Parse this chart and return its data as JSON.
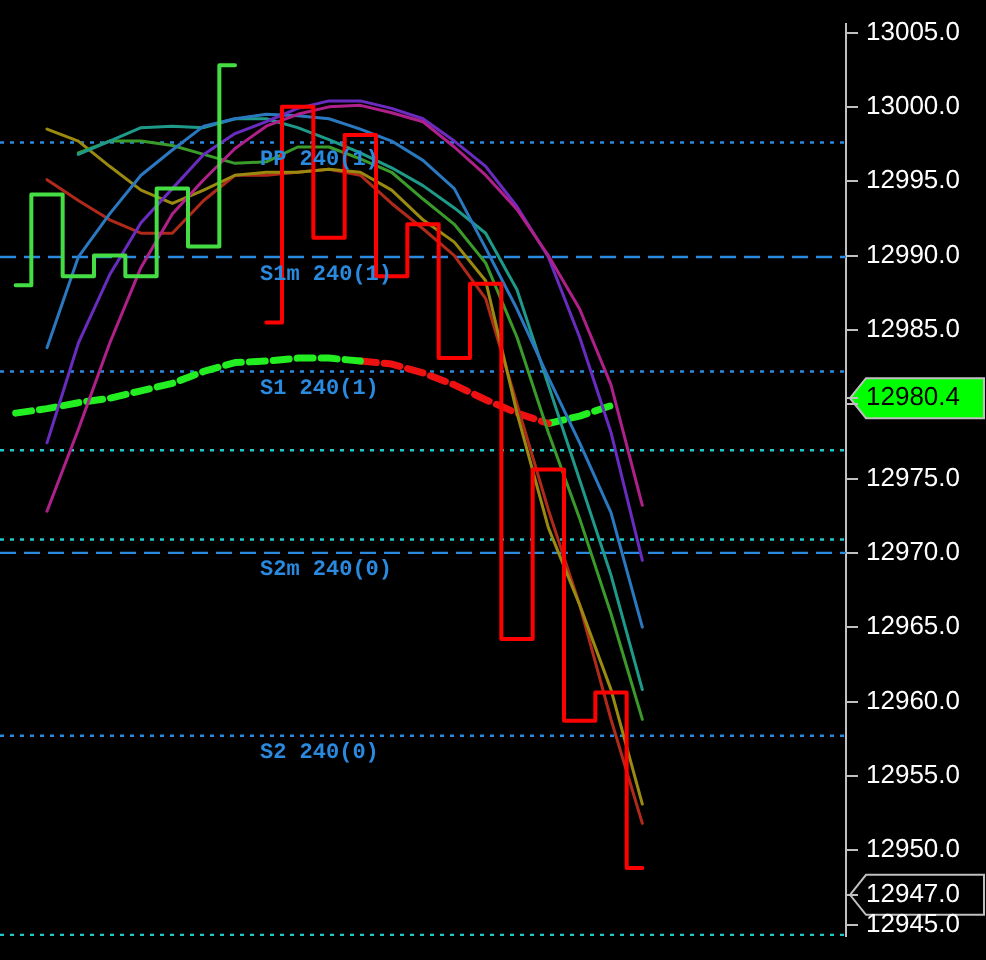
{
  "chart_data": {
    "type": "line",
    "categories": [
      null,
      null,
      null,
      null,
      null,
      null,
      null,
      null,
      null,
      null,
      null,
      null,
      null,
      null,
      null,
      null,
      null,
      null,
      null,
      null,
      null,
      null,
      null,
      null,
      null,
      null,
      null
    ],
    "series": [
      {
        "type": "step",
        "color": "#44dd44",
        "values": [
          12988.0,
          12994.1,
          12988.6,
          12990.0,
          12988.6,
          12994.5,
          12990.6,
          13002.8,
          null,
          null,
          null,
          null,
          null,
          null,
          null,
          null,
          null,
          null,
          null,
          null,
          null,
          null,
          null,
          null,
          null,
          null,
          null
        ]
      },
      {
        "type": "step",
        "color": "#ff0000",
        "values": [
          null,
          null,
          null,
          null,
          null,
          null,
          null,
          null,
          12985.5,
          13000.0,
          12991.2,
          12998.1,
          12988.6,
          12992.1,
          12983.1,
          12988.1,
          12964.2,
          12975.6,
          12958.7,
          12960.6,
          12948.8,
          null,
          null,
          null,
          null,
          null,
          null
        ]
      },
      {
        "color": "#b0208a",
        "values": [
          null,
          12972.8,
          12978.3,
          12984.1,
          12989.2,
          12992.8,
          12995.1,
          12997.2,
          12998.7,
          12999.5,
          13000.0,
          13000.1,
          12999.6,
          12999.0,
          12997.3,
          12995.4,
          12993.1,
          12990.0,
          12986.4,
          12981.3,
          12973.2,
          null,
          null,
          null,
          null,
          null,
          null
        ]
      },
      {
        "color": "#6a2cc0",
        "values": [
          null,
          12977.4,
          12984.1,
          12988.7,
          12992.2,
          12994.5,
          12996.8,
          12998.2,
          12999.0,
          12999.9,
          13000.4,
          13000.4,
          12999.9,
          12999.2,
          12997.7,
          12996.0,
          12993.3,
          12989.9,
          12984.5,
          12978.1,
          12969.5,
          null,
          null,
          null,
          null,
          null,
          null
        ]
      },
      {
        "color": "#2a78c0",
        "values": [
          null,
          12983.8,
          12989.9,
          12992.8,
          12995.4,
          12997.1,
          12998.7,
          12999.2,
          12999.5,
          12999.4,
          12999.2,
          12998.5,
          12997.7,
          12996.4,
          12994.5,
          12990.5,
          12986.4,
          12981.8,
          12977.4,
          12972.7,
          12965.0,
          null,
          null,
          null,
          null,
          null,
          null
        ]
      },
      {
        "color": "#1e9a8a",
        "values": [
          null,
          null,
          12996.8,
          12997.7,
          12998.6,
          12998.7,
          12998.6,
          12999.2,
          12999.2,
          12998.6,
          12997.8,
          12996.9,
          12995.9,
          12994.7,
          12993.2,
          12991.5,
          12987.7,
          12981.3,
          12974.9,
          12968.5,
          12960.8,
          null,
          null,
          null,
          null,
          null,
          null
        ]
      },
      {
        "color": "#3a9a2a",
        "values": [
          null,
          null,
          12996.9,
          12997.7,
          12997.7,
          12997.4,
          12996.8,
          12996.2,
          12996.3,
          12997.3,
          12997.3,
          12996.5,
          12995.6,
          12993.8,
          12992.1,
          12989.5,
          12984.5,
          12978.1,
          12972.3,
          12965.9,
          12958.8,
          null,
          null,
          null,
          null,
          null,
          null
        ]
      },
      {
        "color": "#9a8a10",
        "values": [
          null,
          12998.5,
          12997.7,
          12996.0,
          12994.4,
          12993.5,
          12994.4,
          12995.4,
          12995.6,
          12995.6,
          12995.8,
          12995.6,
          12994.4,
          12992.4,
          12990.9,
          12988.3,
          12979.4,
          12971.7,
          12966.5,
          12960.8,
          12953.1,
          null,
          null,
          null,
          null,
          null,
          null
        ]
      },
      {
        "color": "#b02a1a",
        "values": [
          null,
          12995.1,
          12993.7,
          12992.4,
          12991.5,
          12991.5,
          12993.7,
          12995.4,
          12995.4,
          12995.6,
          12995.8,
          12995.4,
          12993.5,
          12991.8,
          12990.0,
          12987.1,
          12980.0,
          12972.9,
          12966.5,
          12958.8,
          12951.8,
          null,
          null,
          null,
          null,
          null,
          null
        ]
      },
      {
        "color": "#22ee22",
        "line_style": "dashed",
        "values": [
          12979.4,
          12979.7,
          12980.1,
          12980.4,
          12980.9,
          12981.4,
          12982.2,
          12982.8,
          12982.9,
          12983.1,
          12983.1,
          12982.9,
          null,
          null,
          null,
          null,
          null,
          null,
          null,
          null,
          null,
          null,
          null,
          null,
          null,
          null,
          null
        ]
      },
      {
        "color": "#ee1111",
        "line_style": "dashed",
        "values": [
          null,
          null,
          null,
          null,
          null,
          null,
          null,
          null,
          null,
          null,
          null,
          12982.9,
          12982.7,
          12982.1,
          12981.3,
          12980.3,
          12979.4,
          12978.7,
          null,
          null,
          null,
          null,
          null,
          null,
          null,
          null,
          null
        ]
      },
      {
        "color": "#22ee22",
        "line_style": "dashed",
        "values": [
          null,
          null,
          null,
          null,
          null,
          null,
          null,
          null,
          null,
          null,
          null,
          null,
          null,
          null,
          null,
          null,
          null,
          12978.7,
          12979.2,
          12979.9,
          null,
          null,
          null,
          null,
          null,
          null,
          null
        ]
      }
    ],
    "ylim": [
      12944.2,
      13005.6
    ],
    "yticks": [
      {
        "value": 12945,
        "label": "12945.0"
      },
      {
        "value": 12947.0,
        "label": "12947.0"
      },
      {
        "value": 12980.4,
        "label": "12980.4"
      },
      {
        "value": 12950,
        "label": "12950.0"
      },
      {
        "value": 12955,
        "label": "12955.0"
      },
      {
        "value": 12960,
        "label": "12960.0"
      },
      {
        "value": 12965,
        "label": "12965.0"
      },
      {
        "value": 12970,
        "label": "12970.0"
      },
      {
        "value": 12975,
        "label": "12975.0"
      },
      {
        "value": 12980,
        "label": null
      },
      {
        "value": 12985,
        "label": "12985.0"
      },
      {
        "value": 12990,
        "label": "12990.0"
      },
      {
        "value": 12995,
        "label": "12995.0"
      },
      {
        "value": 13000,
        "label": "13000.0"
      },
      {
        "value": 13005,
        "label": "13005.0"
      }
    ],
    "ref_lines": [
      {
        "axis": "y",
        "value": 12997.6,
        "label": "PP 240(1)",
        "color": "#2a8ae0",
        "line_style": "dotted"
      },
      {
        "axis": "y",
        "value": 12989.9,
        "label": "S1m 240(1)",
        "color": "#2a8ae0",
        "line_style": "dashed"
      },
      {
        "axis": "y",
        "value": 12982.2,
        "label": "S1 240(1)",
        "color": "#2a8ae0",
        "line_style": "dotted"
      },
      {
        "axis": "y",
        "value": 12976.9,
        "color": "#20c8c8",
        "line_style": "dotted"
      },
      {
        "axis": "y",
        "value": 12970.9,
        "color": "#20c8c8",
        "line_style": "dotted"
      },
      {
        "axis": "y",
        "value": 12970.0,
        "label": "S2m 240(0)",
        "color": "#2a8ae0",
        "line_style": "dashed"
      },
      {
        "axis": "y",
        "value": 12957.7,
        "label": "S2 240(0)",
        "color": "#2a8ae0",
        "line_style": "dotted"
      },
      {
        "axis": "y",
        "value": 12944.3,
        "color": "#20c8c8",
        "line_style": "dotted"
      }
    ],
    "marker": "none",
    "grid": false,
    "legend": false,
    "tick_labels": "y"
  }
}
